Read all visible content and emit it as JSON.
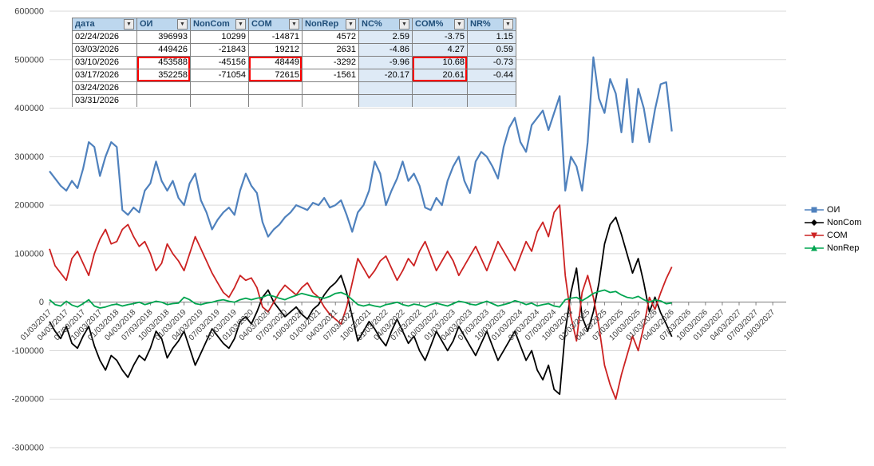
{
  "table": {
    "columns": [
      {
        "key": "data",
        "label": "дата",
        "type": "date",
        "width": 74
      },
      {
        "key": "oi",
        "label": "ОИ",
        "type": "num",
        "width": 60
      },
      {
        "key": "noncom",
        "label": "NonCom",
        "type": "num",
        "width": 66
      },
      {
        "key": "com",
        "label": "COM",
        "type": "num",
        "width": 60
      },
      {
        "key": "nonrep",
        "label": "NonRep",
        "type": "num",
        "width": 64
      },
      {
        "key": "nc-pct",
        "label": "NC%",
        "type": "pct",
        "width": 60
      },
      {
        "key": "com-pct",
        "label": "COM%",
        "type": "pct",
        "width": 62
      },
      {
        "key": "nr-pct",
        "label": "NR%",
        "type": "pct",
        "width": 54
      }
    ],
    "rows": [
      [
        "02/24/2026",
        "396993",
        "10299",
        "-14871",
        "4572",
        "2.59",
        "-3.75",
        "1.15"
      ],
      [
        "03/03/2026",
        "449426",
        "-21843",
        "19212",
        "2631",
        "-4.86",
        "4.27",
        "0.59"
      ],
      [
        "03/10/2026",
        "453588",
        "-45156",
        "48449",
        "-3292",
        "-9.96",
        "10.68",
        "-0.73"
      ],
      [
        "03/17/2026",
        "352258",
        "-71054",
        "72615",
        "-1561",
        "-20.17",
        "20.61",
        "-0.44"
      ],
      [
        "03/24/2026",
        "",
        "",
        "",
        "",
        "",
        "",
        ""
      ],
      [
        "03/31/2026",
        "",
        "",
        "",
        "",
        "",
        "",
        ""
      ]
    ],
    "highlights": [
      {
        "col": 1,
        "rows": [
          2,
          3
        ]
      },
      {
        "col": 3,
        "rows": [
          2,
          3
        ]
      },
      {
        "col": 6,
        "rows": [
          2,
          3
        ]
      }
    ],
    "highlight_color": "#FF0000"
  },
  "chart_data": {
    "type": "line",
    "title": "",
    "xlabel": "",
    "ylabel": "",
    "grid": true,
    "legend_position": "right",
    "ylim": [
      -300000,
      600000
    ],
    "yticks": [
      600000,
      500000,
      400000,
      300000,
      200000,
      100000,
      0,
      -100000,
      -200000,
      -300000
    ],
    "x_start": 2017.0,
    "x_step": 0.0833333,
    "x_range": [
      2017.0,
      2027.95
    ],
    "xtick_step": 0.25,
    "xtick_labels": [
      "01/03/2017",
      "04/03/2017",
      "07/03/2017",
      "10/03/2017",
      "01/03/2018",
      "04/03/2018",
      "07/03/2018",
      "10/03/2018",
      "01/03/2019",
      "04/03/2019",
      "07/03/2019",
      "10/03/2019",
      "01/03/2020",
      "04/03/2020",
      "07/03/2020",
      "10/03/2020",
      "01/03/2021",
      "04/03/2021",
      "07/03/2021",
      "10/03/2021",
      "01/03/2022",
      "04/03/2022",
      "07/03/2022",
      "10/03/2022",
      "01/03/2023",
      "04/03/2023",
      "07/03/2023",
      "10/03/2023",
      "01/03/2024",
      "04/03/2024",
      "07/03/2024",
      "10/03/2024",
      "01/03/2025",
      "04/03/2025",
      "07/03/2025",
      "10/03/2025",
      "01/03/2026",
      "04/03/2026",
      "07/03/2026",
      "10/03/2026",
      "01/03/2027",
      "04/03/2027",
      "07/03/2027",
      "10/03/2027"
    ],
    "series": [
      {
        "name": "ОИ",
        "color": "#4F81BD",
        "marker": "square",
        "values": [
          270000,
          255000,
          240000,
          230000,
          250000,
          235000,
          275000,
          330000,
          320000,
          260000,
          300000,
          330000,
          320000,
          190000,
          180000,
          195000,
          185000,
          230000,
          245000,
          290000,
          250000,
          230000,
          250000,
          215000,
          200000,
          245000,
          265000,
          210000,
          185000,
          150000,
          170000,
          185000,
          195000,
          180000,
          230000,
          265000,
          240000,
          225000,
          165000,
          135000,
          150000,
          160000,
          175000,
          185000,
          200000,
          195000,
          190000,
          205000,
          200000,
          215000,
          195000,
          200000,
          210000,
          180000,
          145000,
          185000,
          200000,
          230000,
          290000,
          265000,
          200000,
          230000,
          255000,
          290000,
          250000,
          265000,
          240000,
          195000,
          190000,
          215000,
          200000,
          250000,
          280000,
          300000,
          250000,
          225000,
          290000,
          310000,
          300000,
          280000,
          255000,
          320000,
          360000,
          380000,
          330000,
          310000,
          365000,
          380000,
          395000,
          355000,
          390000,
          425000,
          230000,
          300000,
          280000,
          230000,
          330000,
          505000,
          420000,
          390000,
          460000,
          430000,
          350000,
          460000,
          330000,
          440000,
          400000,
          330000,
          396993,
          449426,
          453588,
          352258
        ]
      },
      {
        "name": "NonCom",
        "color": "#000000",
        "marker": "diamond",
        "values": [
          -40000,
          -60000,
          -75000,
          -50000,
          -85000,
          -95000,
          -70000,
          -50000,
          -90000,
          -120000,
          -140000,
          -110000,
          -120000,
          -140000,
          -155000,
          -130000,
          -110000,
          -120000,
          -95000,
          -60000,
          -75000,
          -115000,
          -95000,
          -80000,
          -60000,
          -95000,
          -130000,
          -105000,
          -80000,
          -55000,
          -70000,
          -85000,
          -95000,
          -75000,
          -40000,
          -30000,
          -45000,
          -20000,
          10000,
          25000,
          0,
          -15000,
          -30000,
          -20000,
          -10000,
          -25000,
          -35000,
          -15000,
          -5000,
          15000,
          30000,
          40000,
          55000,
          20000,
          -30000,
          -80000,
          -60000,
          -40000,
          -55000,
          -75000,
          -90000,
          -60000,
          -35000,
          -60000,
          -85000,
          -70000,
          -100000,
          -120000,
          -90000,
          -60000,
          -80000,
          -100000,
          -80000,
          -50000,
          -70000,
          -90000,
          -110000,
          -85000,
          -60000,
          -90000,
          -120000,
          -100000,
          -80000,
          -60000,
          -90000,
          -120000,
          -100000,
          -140000,
          -160000,
          -130000,
          -180000,
          -190000,
          -60000,
          20000,
          70000,
          -30000,
          -60000,
          -20000,
          40000,
          120000,
          160000,
          175000,
          140000,
          100000,
          60000,
          90000,
          40000,
          -20000,
          10299,
          -21843,
          -45156,
          -71054
        ]
      },
      {
        "name": "COM",
        "color": "#CC2222",
        "marker": "triangle-down",
        "values": [
          110000,
          75000,
          60000,
          45000,
          90000,
          105000,
          80000,
          55000,
          100000,
          130000,
          150000,
          120000,
          125000,
          150000,
          160000,
          135000,
          115000,
          125000,
          100000,
          65000,
          80000,
          120000,
          100000,
          85000,
          65000,
          100000,
          135000,
          110000,
          85000,
          60000,
          40000,
          20000,
          10000,
          30000,
          55000,
          45000,
          50000,
          30000,
          -10000,
          -20000,
          0,
          20000,
          35000,
          25000,
          15000,
          30000,
          40000,
          20000,
          10000,
          -10000,
          -25000,
          -35000,
          -45000,
          -10000,
          40000,
          90000,
          70000,
          50000,
          65000,
          85000,
          95000,
          70000,
          45000,
          65000,
          90000,
          75000,
          105000,
          125000,
          95000,
          65000,
          85000,
          105000,
          85000,
          55000,
          75000,
          95000,
          115000,
          90000,
          65000,
          95000,
          125000,
          105000,
          85000,
          65000,
          95000,
          125000,
          105000,
          145000,
          165000,
          135000,
          185000,
          200000,
          55000,
          -30000,
          -80000,
          20000,
          55000,
          10000,
          -50000,
          -130000,
          -170000,
          -200000,
          -150000,
          -110000,
          -70000,
          -100000,
          -50000,
          10000,
          -14871,
          19212,
          48449,
          72615
        ]
      },
      {
        "name": "NonRep",
        "color": "#00A550",
        "marker": "triangle-up",
        "values": [
          5000,
          -5000,
          -8000,
          2000,
          -6000,
          -10000,
          -3000,
          5000,
          -8000,
          -12000,
          -10000,
          -6000,
          -4000,
          -8000,
          -5000,
          -3000,
          0,
          -5000,
          -2000,
          2000,
          0,
          -5000,
          -3000,
          -2000,
          10000,
          5000,
          -3000,
          -5000,
          -2000,
          0,
          3000,
          5000,
          2000,
          0,
          5000,
          8000,
          5000,
          8000,
          10000,
          15000,
          12000,
          8000,
          5000,
          10000,
          14000,
          18000,
          15000,
          12000,
          10000,
          8000,
          12000,
          18000,
          20000,
          15000,
          5000,
          -5000,
          -8000,
          -5000,
          -8000,
          -10000,
          -5000,
          -3000,
          0,
          -5000,
          -8000,
          -4000,
          -6000,
          -10000,
          -5000,
          -2000,
          -5000,
          -8000,
          -3000,
          2000,
          0,
          -4000,
          -6000,
          -2000,
          2000,
          -3000,
          -8000,
          -5000,
          -2000,
          3000,
          0,
          -5000,
          -2000,
          -8000,
          -5000,
          -3000,
          -8000,
          -10000,
          5000,
          8000,
          10000,
          3000,
          10000,
          18000,
          22000,
          25000,
          20000,
          22000,
          15000,
          10000,
          8000,
          12000,
          5000,
          0,
          4572,
          2631,
          -3292,
          -1561
        ]
      }
    ]
  }
}
